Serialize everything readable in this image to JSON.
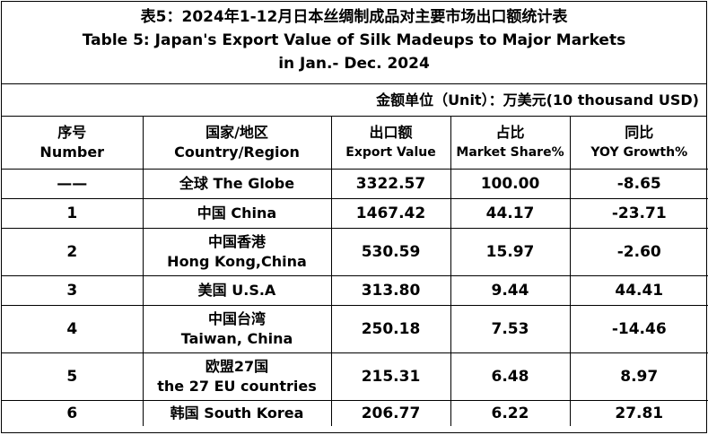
{
  "title": {
    "zh": "表5：2024年1-12月日本丝绸制成品对主要市场出口额统计表",
    "en_line1": "Table 5: Japan's Export Value of Silk Madeups to Major Markets",
    "en_line2": "in Jan.- Dec. 2024"
  },
  "unit": "金额单位（Unit）：万美元(10 thousand USD)",
  "headers": [
    {
      "zh": "序号",
      "en": "Number"
    },
    {
      "zh": "国家/地区",
      "en": "Country/Region"
    },
    {
      "zh": "出口额",
      "en": "Export Value"
    },
    {
      "zh": "占比",
      "en": "Market Share%"
    },
    {
      "zh": "同比",
      "en": "YOY Growth%"
    }
  ],
  "rows": [
    {
      "no": "——",
      "region_zh": "全球 The Globe",
      "region_en": "",
      "value": "3322.57",
      "share": "100.00",
      "yoy": "-8.65"
    },
    {
      "no": "1",
      "region_zh": "中国 China",
      "region_en": "",
      "value": "1467.42",
      "share": "44.17",
      "yoy": "-23.71"
    },
    {
      "no": "2",
      "region_zh": "中国香港",
      "region_en": "Hong Kong,China",
      "value": "530.59",
      "share": "15.97",
      "yoy": "-2.60"
    },
    {
      "no": "3",
      "region_zh": "美国 U.S.A",
      "region_en": "",
      "value": "313.80",
      "share": "9.44",
      "yoy": "44.41"
    },
    {
      "no": "4",
      "region_zh": "中国台湾",
      "region_en": "Taiwan, China",
      "value": "250.18",
      "share": "7.53",
      "yoy": "-14.46"
    },
    {
      "no": "5",
      "region_zh": "欧盟27国",
      "region_en": "the 27 EU countries",
      "value": "215.31",
      "share": "6.48",
      "yoy": "8.97"
    },
    {
      "no": "6",
      "region_zh": "韩国 South Korea",
      "region_en": "",
      "value": "206.77",
      "share": "6.22",
      "yoy": "27.81"
    }
  ]
}
